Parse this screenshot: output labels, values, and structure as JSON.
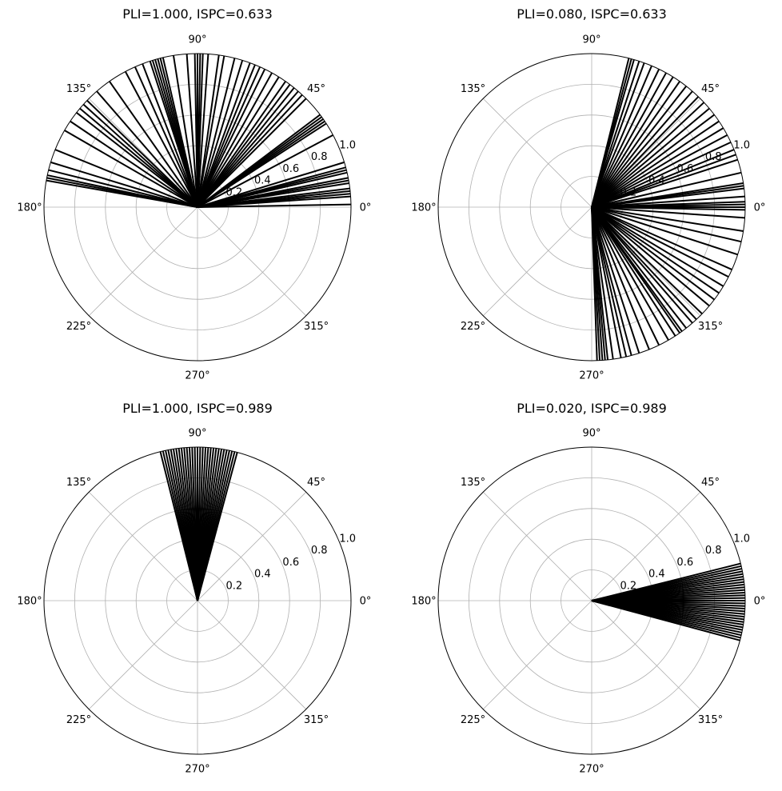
{
  "chart_data": [
    {
      "type": "polar",
      "title": "PLI=1.000, ISPC=0.633",
      "angle_ticks": [
        "0°",
        "45°",
        "90°",
        "135°",
        "180°",
        "225°",
        "270°",
        "315°"
      ],
      "radial_ticks": [
        "0.2",
        "0.4",
        "0.6",
        "0.8",
        "1.0"
      ],
      "rlim": [
        0,
        1.0
      ],
      "grid": true,
      "line_color": "#000000",
      "vector_length": 1.0,
      "angles_deg": [
        1,
        4,
        5,
        6,
        7,
        9,
        10,
        11,
        13,
        14,
        15,
        17,
        28,
        33,
        34,
        35,
        36,
        37,
        45,
        47,
        49,
        51,
        53,
        55,
        58,
        61,
        64,
        66,
        68,
        70,
        73,
        76,
        80,
        82,
        86,
        88,
        89,
        90,
        91,
        94,
        99,
        103,
        104,
        105,
        106,
        107,
        108,
        111,
        114,
        118,
        125,
        131,
        136,
        138,
        140,
        142,
        146,
        150,
        158,
        163,
        166,
        168,
        169,
        170
      ]
    },
    {
      "type": "polar",
      "title": "PLI=0.080, ISPC=0.633",
      "angle_ticks": [
        "0°",
        "45°",
        "90°",
        "135°",
        "180°",
        "225°",
        "270°",
        "315°"
      ],
      "radial_ticks": [
        "0.2",
        "0.4",
        "0.6",
        "0.8",
        "1.0"
      ],
      "rlim": [
        0,
        1.0
      ],
      "grid": true,
      "line_color": "#000000",
      "vector_length": 1.0,
      "angles_deg": [
        -88,
        -87,
        -86,
        -85,
        -84,
        -82,
        -79,
        -77,
        -75,
        -72,
        -68,
        -64,
        -60,
        -57,
        -55,
        -54,
        -52,
        -49,
        -47,
        -44,
        -40,
        -37,
        -34,
        -31,
        -27,
        -24,
        -18,
        -13,
        -9,
        -4,
        -1,
        0,
        1,
        2,
        4,
        7,
        8,
        9,
        13,
        18,
        20,
        22,
        25,
        28,
        31,
        34,
        37,
        40,
        43,
        46,
        49,
        52,
        55,
        58,
        61,
        64,
        67,
        70,
        72,
        74,
        75,
        76
      ]
    },
    {
      "type": "polar",
      "title": "PLI=1.000, ISPC=0.989",
      "angle_ticks": [
        "0°",
        "45°",
        "90°",
        "135°",
        "180°",
        "225°",
        "270°",
        "315°"
      ],
      "radial_ticks": [
        "0.2",
        "0.4",
        "0.6",
        "0.8",
        "1.0"
      ],
      "rlim": [
        0,
        1.0
      ],
      "grid": true,
      "line_color": "#000000",
      "vector_length": 1.0,
      "angles_deg": [
        75,
        76,
        77,
        78,
        79,
        80,
        81,
        82,
        83,
        84,
        85,
        86,
        87,
        88,
        89,
        90,
        91,
        92,
        93,
        94,
        95,
        96,
        97,
        98,
        99,
        100,
        101,
        102,
        103,
        104
      ]
    },
    {
      "type": "polar",
      "title": "PLI=0.020, ISPC=0.989",
      "angle_ticks": [
        "0°",
        "45°",
        "90°",
        "135°",
        "180°",
        "225°",
        "270°",
        "315°"
      ],
      "radial_ticks": [
        "0.2",
        "0.4",
        "0.6",
        "0.8",
        "1.0"
      ],
      "rlim": [
        0,
        1.0
      ],
      "grid": true,
      "line_color": "#000000",
      "vector_length": 1.0,
      "angles_deg": [
        -15,
        -14,
        -13,
        -12,
        -11,
        -10,
        -9,
        -8,
        -7,
        -6,
        -5,
        -4,
        -3,
        -2,
        -1,
        0,
        1,
        2,
        3,
        4,
        5,
        6,
        7,
        8,
        9,
        10,
        11,
        12,
        13,
        14
      ]
    }
  ]
}
